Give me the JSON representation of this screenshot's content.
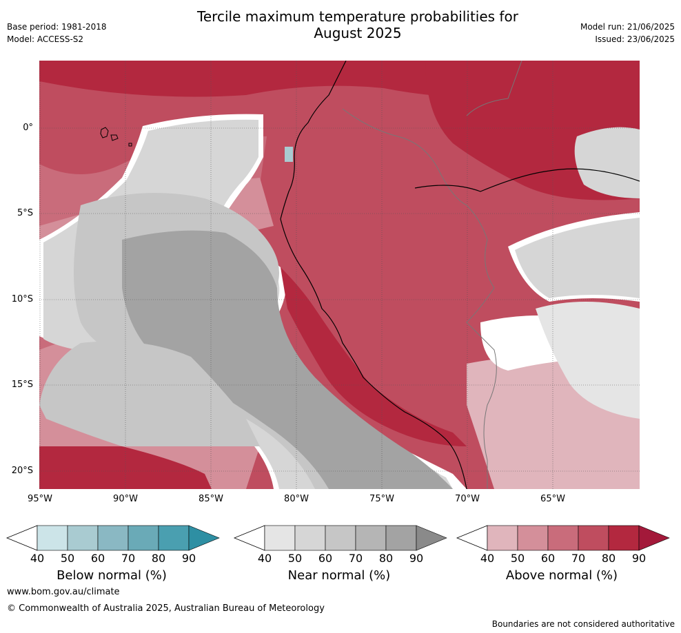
{
  "header": {
    "base_period": "Base period: 1981-2018",
    "model": "Model: ACCESS-S2",
    "title_line1": "Tercile maximum temperature probabilities for",
    "title_line2": "August 2025",
    "model_run": "Model run: 21/06/2025",
    "issued": "Issued: 23/06/2025"
  },
  "map": {
    "lat_labels": [
      "0°",
      "5°S",
      "10°S",
      "15°S",
      "20°S"
    ],
    "lon_labels": [
      "95°W",
      "90°W",
      "85°W",
      "80°W",
      "75°W",
      "70°W",
      "65°W"
    ],
    "region": "Eastern Pacific / Western South America"
  },
  "colorbars": [
    {
      "title": "Below normal (%)",
      "ticks": [
        "40",
        "50",
        "60",
        "70",
        "80",
        "90"
      ],
      "colors": [
        "#cce4e8",
        "#a9cbd1",
        "#8ab8c3",
        "#6aaab7",
        "#4a9fb0",
        "#2e8fa3"
      ]
    },
    {
      "title": "Near normal (%)",
      "ticks": [
        "40",
        "50",
        "60",
        "70",
        "80",
        "90"
      ],
      "colors": [
        "#e5e5e5",
        "#d6d6d6",
        "#c6c6c6",
        "#b5b5b5",
        "#a3a3a3",
        "#8a8a8a"
      ]
    },
    {
      "title": "Above normal (%)",
      "ticks": [
        "40",
        "50",
        "60",
        "70",
        "80",
        "90"
      ],
      "colors": [
        "#e0b5bc",
        "#d48f9a",
        "#c96c7b",
        "#bf4d5f",
        "#b3283f",
        "#a3193a"
      ]
    }
  ],
  "footer": {
    "url": "www.bom.gov.au/climate",
    "copyright": "© Commonwealth of Australia 2025, Australian Bureau of Meteorology",
    "disclaimer": "Boundaries are not considered authoritative"
  }
}
